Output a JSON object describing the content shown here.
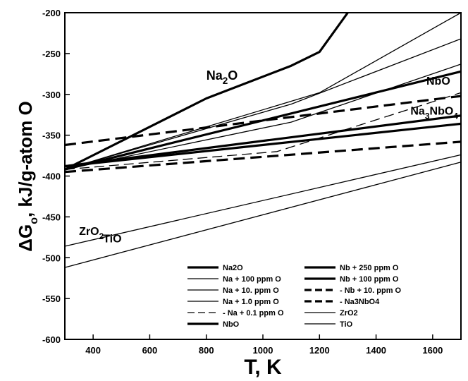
{
  "chart_data": {
    "type": "line",
    "title": "",
    "xlabel": "T, K",
    "ylabel": "ΔG",
    "ylabel_sub": "o",
    "ylabel_rest": ", kJ/g-atom O",
    "xlim": [
      300,
      1700
    ],
    "ylim": [
      -600,
      -200
    ],
    "xticks": [
      400,
      600,
      800,
      1000,
      1200,
      1400,
      1600
    ],
    "yticks": [
      -200,
      -250,
      -300,
      -350,
      -400,
      -450,
      -500,
      -550,
      -600
    ],
    "grid": false,
    "legend_position": "bottom-right",
    "series": [
      {
        "name": "Na2O",
        "style": "thick",
        "x": [
          300,
          800,
          1100,
          1200,
          1300
        ],
        "y": [
          -392,
          -305,
          -265,
          -248,
          -200
        ]
      },
      {
        "name": "Na + 100 ppm O",
        "style": "thin",
        "x": [
          300,
          1200,
          1700
        ],
        "y": [
          -392,
          -298,
          -200
        ]
      },
      {
        "name": "Na + 10. ppm O",
        "style": "thin",
        "x": [
          300,
          1100,
          1700
        ],
        "y": [
          -392,
          -312,
          -232
        ]
      },
      {
        "name": "Na + 1.0 ppm O",
        "style": "thin",
        "x": [
          300,
          1100,
          1700
        ],
        "y": [
          -392,
          -334,
          -263
        ]
      },
      {
        "name": "Na + 0.1 ppm O",
        "style": "thin-dash",
        "x": [
          300,
          1050,
          1700
        ],
        "y": [
          -392,
          -370,
          -298
        ]
      },
      {
        "name": "NbO",
        "style": "thick",
        "x": [
          300,
          1700
        ],
        "y": [
          -392,
          -272
        ]
      },
      {
        "name": "Nb + 250 ppm O",
        "style": "thick",
        "x": [
          300,
          1700
        ],
        "y": [
          -388,
          -326
        ]
      },
      {
        "name": "Nb + 100 ppm O",
        "style": "thick",
        "x": [
          300,
          1700
        ],
        "y": [
          -388,
          -336
        ]
      },
      {
        "name": "Nb + 10. ppm O",
        "style": "thick-dash",
        "x": [
          300,
          1700
        ],
        "y": [
          -395,
          -358
        ]
      },
      {
        "name": "Na3NbO4",
        "style": "thick-dash",
        "x": [
          300,
          1700
        ],
        "y": [
          -362,
          -302
        ]
      },
      {
        "name": "ZrO2",
        "style": "thin",
        "x": [
          300,
          1700
        ],
        "y": [
          -486,
          -374
        ]
      },
      {
        "name": "TiO",
        "style": "thin",
        "x": [
          300,
          1700
        ],
        "y": [
          -512,
          -383
        ]
      }
    ],
    "annotations": [
      {
        "main": "Na",
        "sub": "2",
        "rest": "O"
      },
      {
        "main": "NbO",
        "sub": "",
        "rest": ""
      },
      {
        "main": "Na",
        "sub": "3",
        "rest": "NbO",
        "sub2": "4"
      },
      {
        "main": "ZrO",
        "sub": "2",
        "rest": ""
      },
      {
        "main": "TiO",
        "sub": "",
        "rest": ""
      }
    ],
    "legend_entries": [
      "Na2O",
      "Na + 100 ppm O",
      "Na + 10. ppm O",
      "Na + 1.0 ppm O",
      "- Na + 0.1 ppm O",
      "NbO",
      "Nb + 250 ppm O",
      "Nb + 100 ppm O",
      "- Nb + 10. ppm O",
      "- Na3NbO4",
      "ZrO2",
      "TiO"
    ]
  }
}
